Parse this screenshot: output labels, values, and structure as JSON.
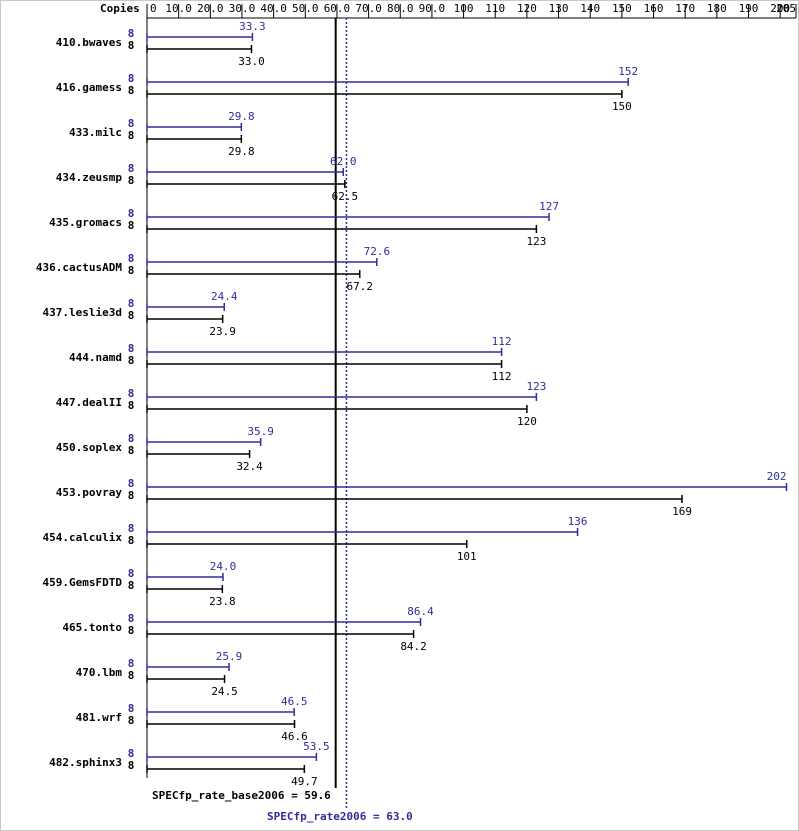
{
  "chart_data": {
    "type": "bar",
    "orientation": "horizontal",
    "x_axis_title": "Copies",
    "xlim": [
      0,
      205
    ],
    "xticks": [
      0,
      {
        "value": 10,
        "label": "10.0"
      },
      {
        "value": 20,
        "label": "20.0"
      },
      {
        "value": 30,
        "label": "30.0"
      },
      {
        "value": 40,
        "label": "40.0"
      },
      {
        "value": 50,
        "label": "50.0"
      },
      {
        "value": 60,
        "label": "60.0"
      },
      {
        "value": 70,
        "label": "70.0"
      },
      {
        "value": 80,
        "label": "80.0"
      },
      {
        "value": 90,
        "label": "90.0"
      },
      100,
      110,
      120,
      130,
      140,
      150,
      160,
      170,
      180,
      190,
      200,
      205
    ],
    "categories": [
      "410.bwaves",
      "416.gamess",
      "433.milc",
      "434.zeusmp",
      "435.gromacs",
      "436.cactusADM",
      "437.leslie3d",
      "444.namd",
      "447.dealII",
      "450.soplex",
      "453.povray",
      "454.calculix",
      "459.GemsFDTD",
      "465.tonto",
      "470.lbm",
      "481.wrf",
      "482.sphinx3"
    ],
    "series": [
      {
        "color": "#2e2e9a",
        "copies": [
          8,
          8,
          8,
          8,
          8,
          8,
          8,
          8,
          8,
          8,
          8,
          8,
          8,
          8,
          8,
          8,
          8
        ],
        "values": [
          33.3,
          152,
          29.8,
          62.0,
          127,
          72.6,
          24.4,
          112,
          123,
          35.9,
          202,
          136,
          24.0,
          86.4,
          25.9,
          46.5,
          53.5
        ],
        "value_labels": [
          "33.3",
          "152",
          "29.8",
          "62.0",
          "127",
          "72.6",
          "24.4",
          "112",
          "123",
          "35.9",
          "202",
          "136",
          "24.0",
          "86.4",
          "25.9",
          "46.5",
          "53.5"
        ]
      },
      {
        "color": "#000000",
        "copies": [
          8,
          8,
          8,
          8,
          8,
          8,
          8,
          8,
          8,
          8,
          8,
          8,
          8,
          8,
          8,
          8,
          8
        ],
        "values": [
          33.0,
          150,
          29.8,
          62.5,
          123,
          67.2,
          23.9,
          112,
          120,
          32.4,
          169,
          101,
          23.8,
          84.2,
          24.5,
          46.6,
          49.7
        ],
        "value_labels": [
          "33.0",
          "150",
          "29.8",
          "62.5",
          "123",
          "67.2",
          "23.9",
          "112",
          "120",
          "32.4",
          "169",
          "101",
          "23.8",
          "84.2",
          "24.5",
          "46.6",
          "49.7"
        ]
      }
    ],
    "reference_lines": [
      {
        "value": 59.6,
        "label": "SPECfp_rate_base2006 = 59.6",
        "color": "#000000",
        "style": "solid"
      },
      {
        "value": 63.0,
        "label": "SPECfp_rate2006 = 63.0",
        "color": "#2e2e9a",
        "style": "dotted"
      }
    ]
  }
}
